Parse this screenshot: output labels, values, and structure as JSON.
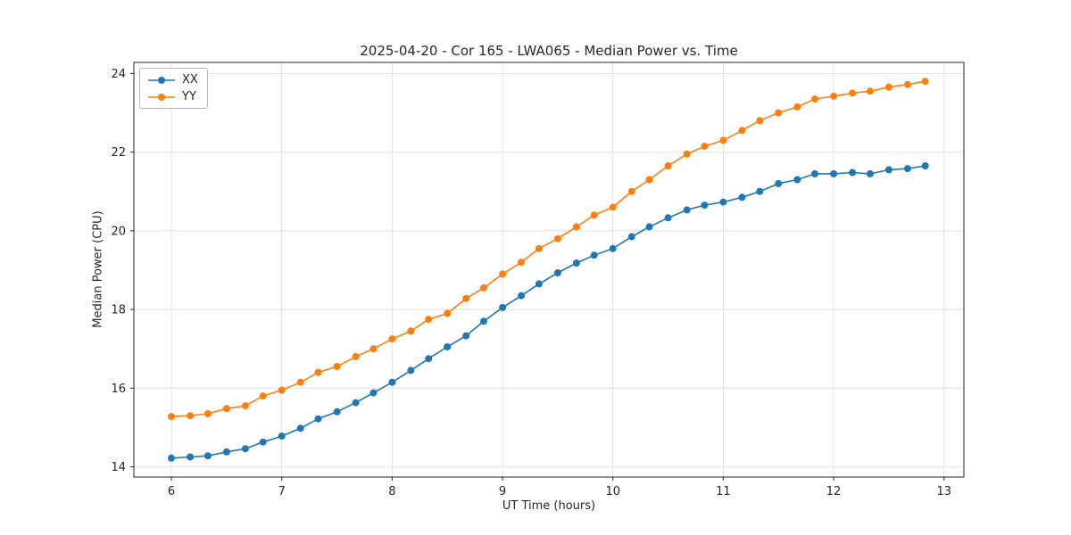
{
  "chart_data": {
    "type": "line",
    "title": "2025-04-20 - Cor 165 - LWA065 - Median Power vs. Time",
    "xlabel": "UT Time (hours)",
    "ylabel": "Median Power (CPU)",
    "xlim": [
      5.66,
      13.18
    ],
    "ylim": [
      13.74,
      24.28
    ],
    "x_ticks": [
      6,
      7,
      8,
      9,
      10,
      11,
      12,
      13
    ],
    "y_ticks": [
      14,
      16,
      18,
      20,
      22,
      24
    ],
    "grid": true,
    "legend_position": "upper left",
    "marker": "circle",
    "x": [
      6.0,
      6.17,
      6.33,
      6.5,
      6.67,
      6.83,
      7.0,
      7.17,
      7.33,
      7.5,
      7.67,
      7.83,
      8.0,
      8.17,
      8.33,
      8.5,
      8.67,
      8.83,
      9.0,
      9.17,
      9.33,
      9.5,
      9.67,
      9.83,
      10.0,
      10.17,
      10.33,
      10.5,
      10.67,
      10.83,
      11.0,
      11.17,
      11.33,
      11.5,
      11.67,
      11.83,
      12.0,
      12.17,
      12.33,
      12.5,
      12.67,
      12.83
    ],
    "series": [
      {
        "name": "XX",
        "color": "#1f77b4",
        "values": [
          14.22,
          14.25,
          14.28,
          14.38,
          14.46,
          14.63,
          14.78,
          14.98,
          15.22,
          15.4,
          15.63,
          15.88,
          16.15,
          16.45,
          16.75,
          17.05,
          17.33,
          17.7,
          18.05,
          18.35,
          18.65,
          18.93,
          19.18,
          19.38,
          19.55,
          19.85,
          20.1,
          20.33,
          20.53,
          20.65,
          20.73,
          20.85,
          21.0,
          21.2,
          21.3,
          21.45,
          21.45,
          21.48,
          21.45,
          21.55,
          21.58,
          21.65
        ]
      },
      {
        "name": "YY",
        "color": "#ff7f0e",
        "values": [
          15.28,
          15.3,
          15.35,
          15.48,
          15.55,
          15.8,
          15.95,
          16.15,
          16.4,
          16.55,
          16.8,
          17.0,
          17.25,
          17.45,
          17.75,
          17.9,
          18.28,
          18.55,
          18.9,
          19.2,
          19.55,
          19.8,
          20.1,
          20.4,
          20.6,
          21.0,
          21.3,
          21.65,
          21.95,
          22.15,
          22.3,
          22.55,
          22.8,
          23.0,
          23.15,
          23.35,
          23.42,
          23.5,
          23.55,
          23.65,
          23.72,
          23.8
        ]
      }
    ]
  }
}
